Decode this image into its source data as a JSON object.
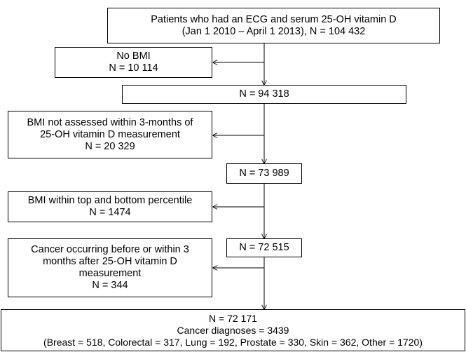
{
  "flowchart": {
    "start": {
      "lines": [
        "Patients who had an ECG and serum 25-OH vitamin D",
        "(Jan 1 2010 – April 1 2013), N = 104 432"
      ]
    },
    "exclusion_1": {
      "lines": [
        "No BMI",
        "N = 10 114"
      ]
    },
    "step_1": {
      "lines": [
        "N = 94 318"
      ]
    },
    "exclusion_2": {
      "lines": [
        "BMI not assessed within 3-months of",
        "25-OH vitamin D measurement",
        "N = 20 329"
      ]
    },
    "step_2": {
      "lines": [
        "N = 73 989"
      ]
    },
    "exclusion_3": {
      "lines": [
        "BMI within top and bottom percentile",
        "N = 1474"
      ]
    },
    "step_3": {
      "lines": [
        "N = 72 515"
      ]
    },
    "exclusion_4": {
      "lines": [
        "Cancer occurring before or within 3",
        "months after 25-OH vitamin D",
        "measurement",
        "N = 344"
      ]
    },
    "final": {
      "lines": [
        "N = 72 171",
        "Cancer diagnoses = 3439",
        "(Breast = 518, Colorectal = 317, Lung = 192, Prostate = 330, Skin = 362, Other = 1720)"
      ]
    }
  }
}
